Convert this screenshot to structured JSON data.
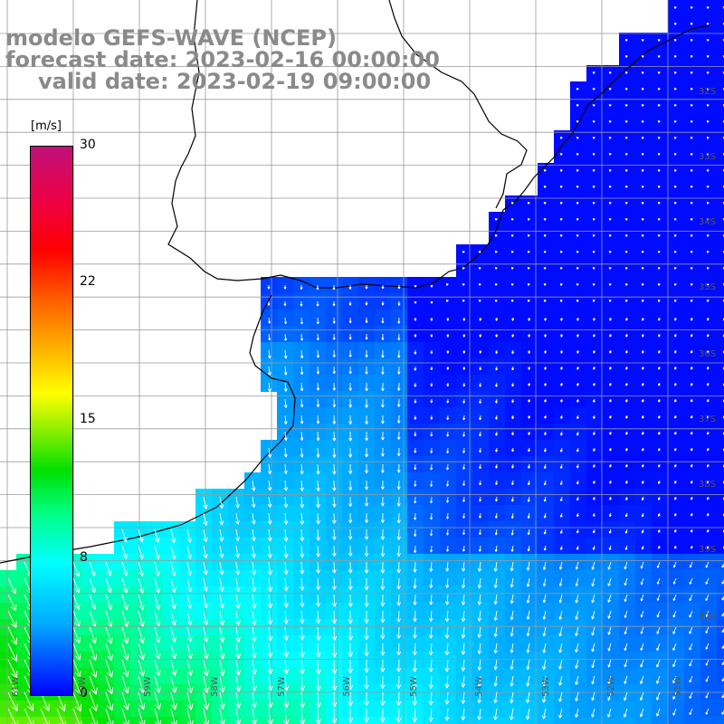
{
  "title": {
    "line1": "modelo GEFS-WAVE (NCEP)",
    "line2": "forecast date: 2023-02-16 00:00:00",
    "line3": "valid date: 2023-02-19 09:00:00"
  },
  "colorbar": {
    "unit": "[m/s]",
    "ticks": [
      "30",
      "22",
      "15",
      "8",
      "0"
    ],
    "tick_values": [
      30,
      22,
      15,
      8,
      0
    ]
  },
  "lat_labels": [
    "32S",
    "33S",
    "34S",
    "35S",
    "36S",
    "37S",
    "38S",
    "39S",
    "40S"
  ],
  "lon_labels": [
    "61W",
    "60W",
    "59W",
    "58W",
    "57W",
    "56W",
    "55W",
    "54W",
    "53W",
    "52W",
    "51W"
  ],
  "colors": {
    "land": "#ffffff",
    "coast": "#000000",
    "grid": "#9a9a9a",
    "arrow": "#ffffff"
  }
}
